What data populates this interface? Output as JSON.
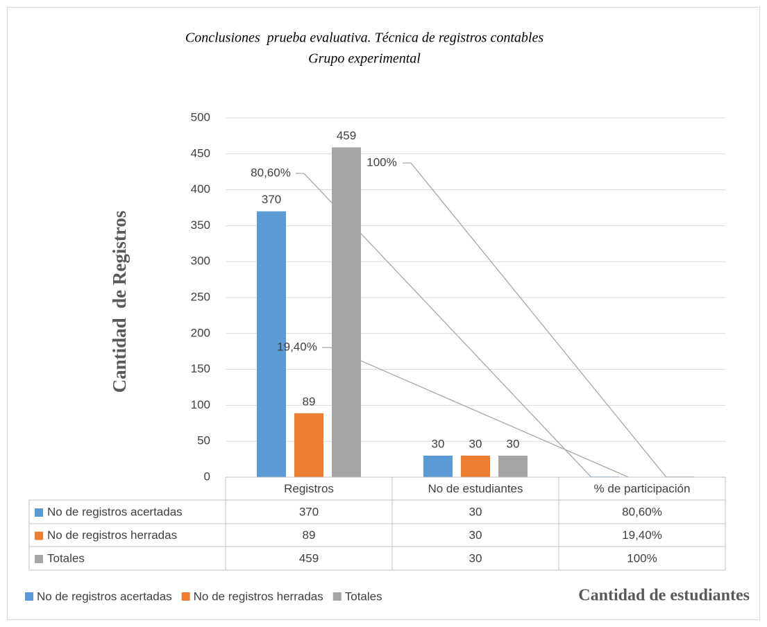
{
  "chart_data": {
    "type": "bar",
    "title": "Conclusiones  prueba evaluativa. Técnica de registros contables",
    "subtitle": "Grupo experimental",
    "y_label": "Cantidad  de Registros",
    "x_label": "Cantidad de estudiantes",
    "categories": [
      "Registros",
      "No de estudiantes",
      "% de participación"
    ],
    "series": [
      {
        "name": "No de registros acertadas",
        "color": "#5b9bd5",
        "values": [
          370,
          30,
          0.806
        ],
        "value_labels": [
          "370",
          "30",
          "80,60%"
        ]
      },
      {
        "name": "No de registros herradas",
        "color": "#ed7d31",
        "values": [
          89,
          30,
          0.194
        ],
        "value_labels": [
          "89",
          "30",
          "19,40%"
        ]
      },
      {
        "name": "Totales",
        "color": "#a5a5a5",
        "values": [
          459,
          30,
          1
        ],
        "value_labels": [
          "459",
          "30",
          "100%"
        ]
      }
    ],
    "ylim": [
      0,
      500
    ],
    "yticks": [
      0,
      50,
      100,
      150,
      200,
      250,
      300,
      350,
      400,
      450,
      500
    ],
    "grid": true,
    "legend": "bottom"
  }
}
